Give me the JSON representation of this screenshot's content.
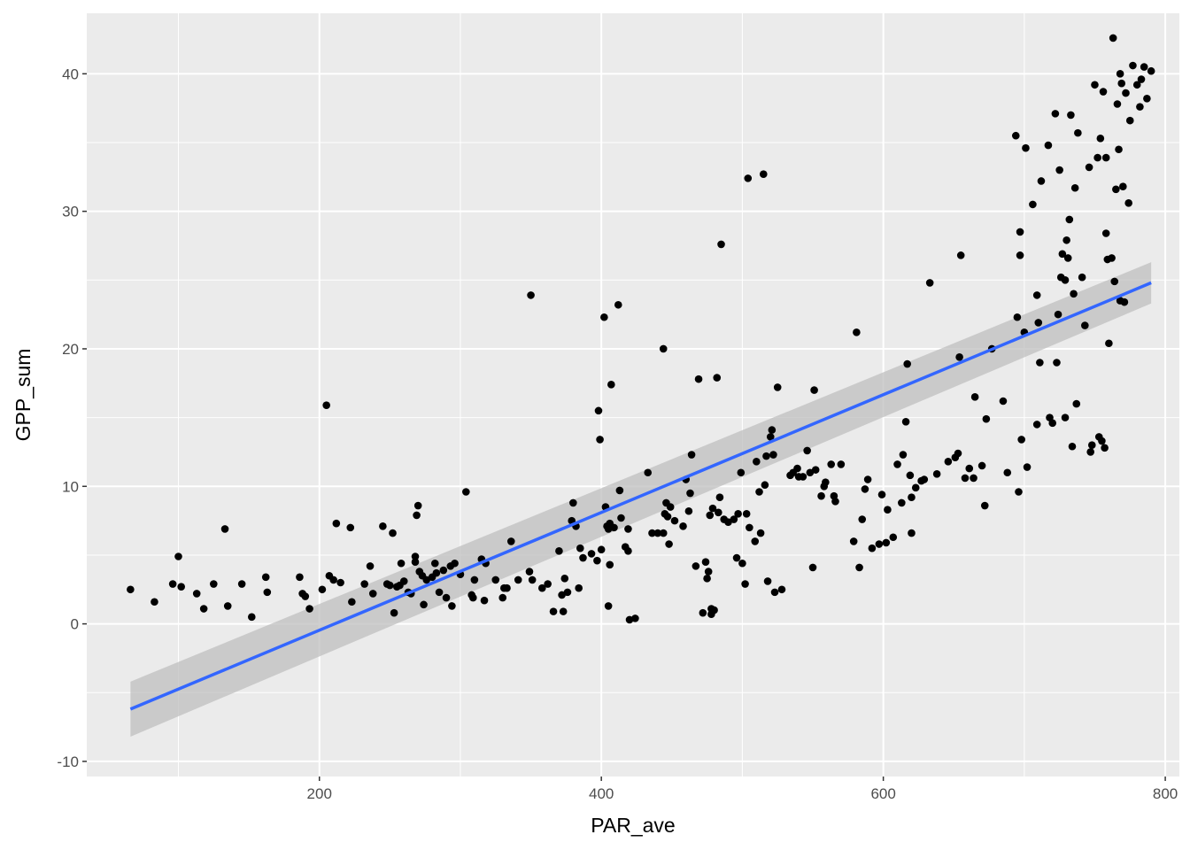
{
  "chart_data": {
    "type": "scatter",
    "title": "",
    "xlabel": "PAR_ave",
    "ylabel": "GPP_sum",
    "xlim": [
      35,
      810
    ],
    "ylim": [
      -11.1,
      44.4
    ],
    "xticks": [
      200,
      400,
      600,
      800
    ],
    "xtick_labels": [
      "200",
      "400",
      "600",
      "800"
    ],
    "yticks": [
      -10,
      0,
      10,
      20,
      30,
      40
    ],
    "ytick_labels": [
      "-10",
      "0",
      "10",
      "20",
      "30",
      "40"
    ],
    "grid": true,
    "legend": "none",
    "colors": {
      "panel": "#ebebeb",
      "grid": "#ffffff",
      "points": "#000000",
      "fit_line": "#3366ff",
      "ribbon": "#bfbfbf"
    },
    "fit": {
      "method": "lm",
      "x": [
        66,
        790
      ],
      "y": [
        -6.2,
        24.8
      ],
      "ci_lower": [
        -8.2,
        23.3
      ],
      "ci_upper": [
        -4.2,
        26.3
      ]
    },
    "points": [
      [
        66,
        2.5
      ],
      [
        83,
        1.6
      ],
      [
        96,
        2.9
      ],
      [
        100,
        4.9
      ],
      [
        102,
        2.7
      ],
      [
        113,
        2.2
      ],
      [
        118,
        1.1
      ],
      [
        125,
        2.9
      ],
      [
        133,
        6.9
      ],
      [
        135,
        1.3
      ],
      [
        145,
        2.9
      ],
      [
        152,
        0.5
      ],
      [
        162,
        3.4
      ],
      [
        163,
        2.3
      ],
      [
        186,
        3.4
      ],
      [
        188,
        2.2
      ],
      [
        190,
        2.0
      ],
      [
        193,
        1.1
      ],
      [
        202,
        2.5
      ],
      [
        205,
        15.9
      ],
      [
        207,
        3.5
      ],
      [
        210,
        3.2
      ],
      [
        212,
        7.3
      ],
      [
        215,
        3.0
      ],
      [
        222,
        7.0
      ],
      [
        223,
        1.6
      ],
      [
        232,
        2.9
      ],
      [
        236,
        4.2
      ],
      [
        238,
        2.2
      ],
      [
        245,
        7.1
      ],
      [
        248,
        2.9
      ],
      [
        250,
        2.8
      ],
      [
        252,
        6.6
      ],
      [
        253,
        0.8
      ],
      [
        255,
        2.7
      ],
      [
        257,
        2.8
      ],
      [
        258,
        4.4
      ],
      [
        260,
        3.1
      ],
      [
        263,
        2.3
      ],
      [
        265,
        2.2
      ],
      [
        268,
        4.9
      ],
      [
        268,
        4.5
      ],
      [
        269,
        7.9
      ],
      [
        270,
        8.6
      ],
      [
        271,
        3.8
      ],
      [
        273,
        3.5
      ],
      [
        274,
        1.4
      ],
      [
        276,
        3.2
      ],
      [
        280,
        3.4
      ],
      [
        282,
        4.4
      ],
      [
        283,
        3.7
      ],
      [
        285,
        2.3
      ],
      [
        288,
        3.9
      ],
      [
        290,
        1.9
      ],
      [
        293,
        4.2
      ],
      [
        294,
        1.3
      ],
      [
        296,
        4.4
      ],
      [
        300,
        3.6
      ],
      [
        304,
        9.6
      ],
      [
        308,
        2.1
      ],
      [
        309,
        1.9
      ],
      [
        310,
        3.2
      ],
      [
        315,
        4.7
      ],
      [
        317,
        1.7
      ],
      [
        318,
        4.4
      ],
      [
        325,
        3.2
      ],
      [
        330,
        1.9
      ],
      [
        331,
        2.6
      ],
      [
        333,
        2.6
      ],
      [
        336,
        6.0
      ],
      [
        341,
        3.2
      ],
      [
        349,
        3.8
      ],
      [
        350,
        23.9
      ],
      [
        351,
        3.2
      ],
      [
        358,
        2.6
      ],
      [
        362,
        2.9
      ],
      [
        366,
        0.9
      ],
      [
        370,
        5.3
      ],
      [
        372,
        2.1
      ],
      [
        373,
        0.9
      ],
      [
        374,
        3.3
      ],
      [
        376,
        2.3
      ],
      [
        379,
        7.5
      ],
      [
        380,
        8.8
      ],
      [
        382,
        7.1
      ],
      [
        384,
        2.6
      ],
      [
        385,
        5.5
      ],
      [
        387,
        4.8
      ],
      [
        393,
        5.1
      ],
      [
        397,
        4.6
      ],
      [
        398,
        15.5
      ],
      [
        399,
        13.4
      ],
      [
        400,
        5.4
      ],
      [
        402,
        22.3
      ],
      [
        403,
        8.5
      ],
      [
        404,
        7.1
      ],
      [
        405,
        6.9
      ],
      [
        405,
        1.3
      ],
      [
        406,
        4.3
      ],
      [
        406,
        7.3
      ],
      [
        407,
        17.4
      ],
      [
        409,
        7.0
      ],
      [
        412,
        23.2
      ],
      [
        413,
        9.7
      ],
      [
        414,
        7.7
      ],
      [
        417,
        5.6
      ],
      [
        419,
        6.9
      ],
      [
        419,
        5.3
      ],
      [
        420,
        0.3
      ],
      [
        424,
        0.4
      ],
      [
        433,
        11.0
      ],
      [
        436,
        6.6
      ],
      [
        440,
        6.6
      ],
      [
        444,
        6.6
      ],
      [
        444,
        20.0
      ],
      [
        445,
        8.0
      ],
      [
        446,
        8.8
      ],
      [
        447,
        7.8
      ],
      [
        448,
        5.8
      ],
      [
        449,
        8.5
      ],
      [
        452,
        7.5
      ],
      [
        458,
        7.1
      ],
      [
        460,
        10.5
      ],
      [
        462,
        8.2
      ],
      [
        463,
        9.5
      ],
      [
        464,
        12.3
      ],
      [
        467,
        4.2
      ],
      [
        469,
        17.8
      ],
      [
        472,
        0.8
      ],
      [
        474,
        4.5
      ],
      [
        475,
        3.3
      ],
      [
        476,
        3.8
      ],
      [
        477,
        7.9
      ],
      [
        478,
        1.1
      ],
      [
        478,
        0.7
      ],
      [
        479,
        8.4
      ],
      [
        480,
        1.0
      ],
      [
        482,
        17.9
      ],
      [
        483,
        8.1
      ],
      [
        484,
        9.2
      ],
      [
        485,
        27.6
      ],
      [
        487,
        7.6
      ],
      [
        490,
        7.4
      ],
      [
        494,
        7.6
      ],
      [
        496,
        4.8
      ],
      [
        497,
        8.0
      ],
      [
        499,
        11.0
      ],
      [
        500,
        4.4
      ],
      [
        502,
        2.9
      ],
      [
        503,
        8.0
      ],
      [
        504,
        32.4
      ],
      [
        505,
        7.0
      ],
      [
        509,
        6.0
      ],
      [
        510,
        11.8
      ],
      [
        512,
        9.6
      ],
      [
        513,
        6.6
      ],
      [
        515,
        32.7
      ],
      [
        516,
        10.1
      ],
      [
        517,
        12.2
      ],
      [
        518,
        3.1
      ],
      [
        520,
        13.6
      ],
      [
        521,
        14.1
      ],
      [
        522,
        12.3
      ],
      [
        523,
        2.3
      ],
      [
        525,
        17.2
      ],
      [
        528,
        2.5
      ],
      [
        534,
        10.8
      ],
      [
        536,
        11.0
      ],
      [
        539,
        11.3
      ],
      [
        540,
        10.7
      ],
      [
        543,
        10.7
      ],
      [
        546,
        12.6
      ],
      [
        548,
        11.0
      ],
      [
        550,
        4.1
      ],
      [
        551,
        17.0
      ],
      [
        552,
        11.2
      ],
      [
        556,
        9.3
      ],
      [
        558,
        10.0
      ],
      [
        559,
        10.3
      ],
      [
        563,
        11.6
      ],
      [
        565,
        9.3
      ],
      [
        566,
        8.9
      ],
      [
        570,
        11.6
      ],
      [
        579,
        6.0
      ],
      [
        581,
        21.2
      ],
      [
        583,
        4.1
      ],
      [
        585,
        7.6
      ],
      [
        587,
        9.8
      ],
      [
        589,
        10.5
      ],
      [
        592,
        5.5
      ],
      [
        597,
        5.8
      ],
      [
        599,
        9.4
      ],
      [
        602,
        5.9
      ],
      [
        603,
        8.3
      ],
      [
        607,
        6.3
      ],
      [
        610,
        11.6
      ],
      [
        613,
        8.8
      ],
      [
        614,
        12.3
      ],
      [
        616,
        14.7
      ],
      [
        617,
        18.9
      ],
      [
        619,
        10.8
      ],
      [
        620,
        9.2
      ],
      [
        620,
        6.6
      ],
      [
        623,
        9.9
      ],
      [
        627,
        10.4
      ],
      [
        629,
        10.5
      ],
      [
        633,
        24.8
      ],
      [
        638,
        10.9
      ],
      [
        646,
        11.8
      ],
      [
        651,
        12.1
      ],
      [
        653,
        12.4
      ],
      [
        654,
        19.4
      ],
      [
        655,
        26.8
      ],
      [
        658,
        10.6
      ],
      [
        661,
        11.3
      ],
      [
        664,
        10.6
      ],
      [
        665,
        16.5
      ],
      [
        670,
        11.5
      ],
      [
        672,
        8.6
      ],
      [
        673,
        14.9
      ],
      [
        677,
        20.0
      ],
      [
        685,
        16.2
      ],
      [
        688,
        11.0
      ],
      [
        694,
        35.5
      ],
      [
        695,
        22.3
      ],
      [
        696,
        9.6
      ],
      [
        697,
        26.8
      ],
      [
        697,
        28.5
      ],
      [
        698,
        13.4
      ],
      [
        700,
        21.2
      ],
      [
        701,
        34.6
      ],
      [
        702,
        11.4
      ],
      [
        706,
        30.5
      ],
      [
        709,
        14.5
      ],
      [
        709,
        23.9
      ],
      [
        710,
        21.9
      ],
      [
        711,
        19.0
      ],
      [
        712,
        32.2
      ],
      [
        717,
        34.8
      ],
      [
        718,
        15.0
      ],
      [
        720,
        14.6
      ],
      [
        722,
        37.1
      ],
      [
        723,
        19.0
      ],
      [
        724,
        22.5
      ],
      [
        725,
        33.0
      ],
      [
        726,
        25.2
      ],
      [
        727,
        26.9
      ],
      [
        729,
        15.0
      ],
      [
        729,
        25.0
      ],
      [
        730,
        27.9
      ],
      [
        731,
        26.6
      ],
      [
        732,
        29.4
      ],
      [
        733,
        37.0
      ],
      [
        734,
        12.9
      ],
      [
        735,
        24.0
      ],
      [
        736,
        31.7
      ],
      [
        737,
        16.0
      ],
      [
        738,
        35.7
      ],
      [
        741,
        25.2
      ],
      [
        743,
        21.7
      ],
      [
        746,
        33.2
      ],
      [
        747,
        12.5
      ],
      [
        748,
        13.0
      ],
      [
        750,
        39.2
      ],
      [
        752,
        33.9
      ],
      [
        753,
        13.6
      ],
      [
        754,
        35.3
      ],
      [
        755,
        13.3
      ],
      [
        756,
        38.7
      ],
      [
        757,
        12.8
      ],
      [
        758,
        33.9
      ],
      [
        758,
        28.4
      ],
      [
        759,
        26.5
      ],
      [
        760,
        20.4
      ],
      [
        762,
        26.6
      ],
      [
        763,
        42.6
      ],
      [
        764,
        24.9
      ],
      [
        765,
        31.6
      ],
      [
        766,
        37.8
      ],
      [
        767,
        34.5
      ],
      [
        768,
        40.0
      ],
      [
        768,
        23.5
      ],
      [
        769,
        39.3
      ],
      [
        770,
        31.8
      ],
      [
        771,
        23.4
      ],
      [
        772,
        38.6
      ],
      [
        774,
        30.6
      ],
      [
        775,
        36.6
      ],
      [
        777,
        40.6
      ],
      [
        780,
        39.2
      ],
      [
        782,
        37.6
      ],
      [
        783,
        39.6
      ],
      [
        785,
        40.5
      ],
      [
        787,
        38.2
      ],
      [
        790,
        40.2
      ]
    ]
  }
}
